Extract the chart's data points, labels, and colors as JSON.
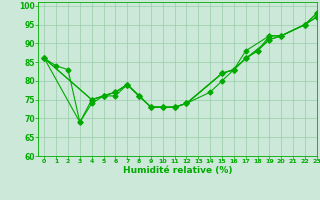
{
  "xlabel": "Humidité relative (%)",
  "xlim": [
    -0.5,
    23
  ],
  "ylim": [
    60,
    101
  ],
  "xticks": [
    0,
    1,
    2,
    3,
    4,
    5,
    6,
    7,
    8,
    9,
    10,
    11,
    12,
    13,
    14,
    15,
    16,
    17,
    18,
    19,
    20,
    21,
    22,
    23
  ],
  "yticks": [
    60,
    65,
    70,
    75,
    80,
    85,
    90,
    95,
    100
  ],
  "background_color": "#cce8d8",
  "grid_color": "#99ccaa",
  "line_color": "#00aa00",
  "lines": [
    {
      "x": [
        0,
        1,
        2,
        3,
        4,
        5,
        6,
        7,
        8,
        9,
        10,
        11,
        12,
        14,
        15,
        16,
        17,
        19,
        20,
        22,
        23
      ],
      "y": [
        86,
        84,
        83,
        69,
        74,
        76,
        76,
        79,
        76,
        73,
        73,
        73,
        74,
        77,
        80,
        83,
        88,
        92,
        92,
        95,
        98
      ]
    },
    {
      "x": [
        0,
        3,
        4,
        5,
        6,
        7,
        8,
        9,
        10,
        11,
        12,
        15,
        16,
        17,
        18,
        19,
        20,
        22,
        23
      ],
      "y": [
        86,
        69,
        75,
        76,
        77,
        79,
        76,
        73,
        73,
        73,
        74,
        82,
        83,
        86,
        88,
        91,
        92,
        95,
        97
      ]
    },
    {
      "x": [
        0,
        4,
        5,
        6,
        7,
        8,
        9,
        10,
        11,
        12,
        15,
        16,
        17,
        18,
        19,
        20,
        22,
        23
      ],
      "y": [
        86,
        75,
        76,
        77,
        79,
        76,
        73,
        73,
        73,
        74,
        82,
        83,
        86,
        88,
        92,
        92,
        95,
        98
      ]
    },
    {
      "x": [
        0,
        4,
        5,
        6,
        7,
        8,
        9,
        10,
        11,
        12,
        15,
        16,
        17,
        19,
        20,
        22,
        23
      ],
      "y": [
        86,
        75,
        76,
        77,
        79,
        76,
        73,
        73,
        73,
        74,
        82,
        83,
        86,
        91,
        92,
        95,
        97
      ]
    }
  ]
}
